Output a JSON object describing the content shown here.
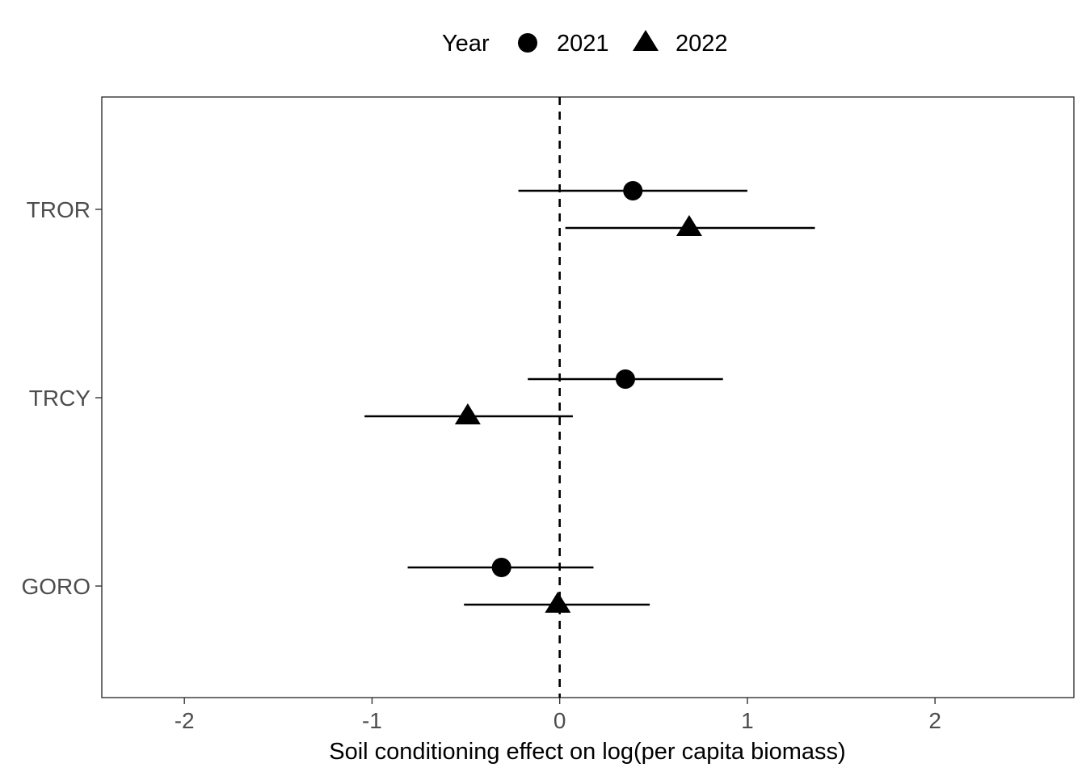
{
  "chart_data": {
    "type": "scatter",
    "title": "",
    "xlabel": "Soil conditioning effect on log(per capita biomass)",
    "ylabel": "",
    "xlim": [
      -2.44,
      2.74
    ],
    "xticks": [
      -2,
      -1,
      0,
      1,
      2
    ],
    "xtick_labels": [
      "-2",
      "-1",
      "0",
      "1",
      "2"
    ],
    "categories": [
      "TROR",
      "TRCY",
      "GORO"
    ],
    "reference_line": {
      "x": 0,
      "style": "dashed"
    },
    "grid": false,
    "legend": {
      "title": "Year",
      "position": "top"
    },
    "colors": {
      "points": "#000000",
      "axis_text": "#4d4d4d",
      "panel_border": "#333333"
    },
    "series": [
      {
        "name": "2021",
        "shape": "circle",
        "points": [
          {
            "category": "TROR",
            "estimate": 0.39,
            "lower": -0.22,
            "upper": 1.0
          },
          {
            "category": "TRCY",
            "estimate": 0.35,
            "lower": -0.17,
            "upper": 0.87
          },
          {
            "category": "GORO",
            "estimate": -0.31,
            "lower": -0.81,
            "upper": 0.18
          }
        ]
      },
      {
        "name": "2022",
        "shape": "triangle",
        "points": [
          {
            "category": "TROR",
            "estimate": 0.69,
            "lower": 0.03,
            "upper": 1.36
          },
          {
            "category": "TRCY",
            "estimate": -0.49,
            "lower": -1.04,
            "upper": 0.07
          },
          {
            "category": "GORO",
            "estimate": -0.01,
            "lower": -0.51,
            "upper": 0.48
          }
        ]
      }
    ]
  }
}
